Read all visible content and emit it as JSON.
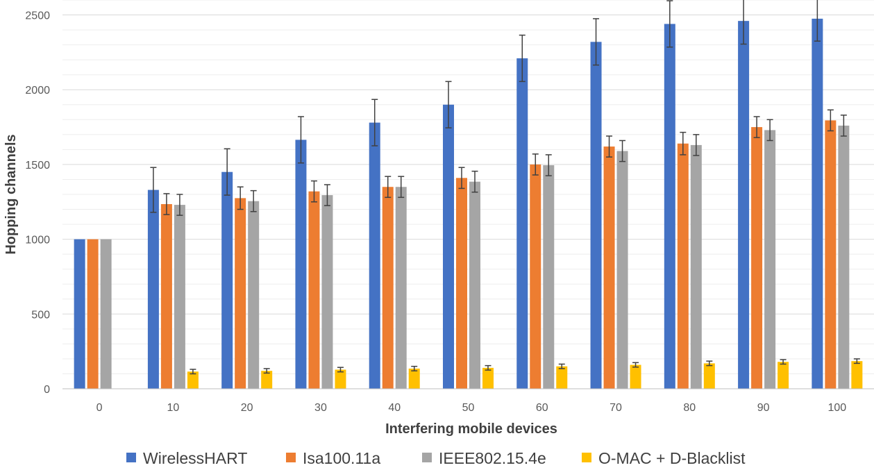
{
  "chart_data": {
    "type": "bar",
    "xlabel": "Interfering mobile devices",
    "ylabel": "Hopping channels",
    "ylim": [
      0,
      2600
    ],
    "yticks": [
      0,
      500,
      1000,
      1500,
      2000,
      2500
    ],
    "grid": true,
    "legend_position": "bottom",
    "categories": [
      "0",
      "10",
      "20",
      "30",
      "40",
      "50",
      "60",
      "70",
      "80",
      "90",
      "100"
    ],
    "series": [
      {
        "name": "WirelessHART",
        "color": "#4472C4",
        "values": [
          1000,
          1330,
          1450,
          1665,
          1780,
          1900,
          2210,
          2320,
          2440,
          2460,
          2475
        ],
        "error": [
          0,
          150,
          155,
          155,
          155,
          155,
          155,
          155,
          155,
          155,
          150
        ]
      },
      {
        "name": "Isa100.11a",
        "color": "#ED7D31",
        "values": [
          1000,
          1235,
          1275,
          1320,
          1350,
          1410,
          1500,
          1620,
          1640,
          1750,
          1795
        ],
        "error": [
          0,
          70,
          75,
          70,
          70,
          70,
          70,
          70,
          75,
          70,
          70
        ]
      },
      {
        "name": "IEEE802.15.4e",
        "color": "#A5A5A5",
        "values": [
          1000,
          1230,
          1255,
          1295,
          1350,
          1385,
          1495,
          1590,
          1630,
          1730,
          1760
        ],
        "error": [
          0,
          70,
          70,
          70,
          70,
          70,
          70,
          70,
          70,
          70,
          70
        ]
      },
      {
        "name": "O-MAC + D-Blacklist",
        "color": "#FFC000",
        "values": [
          0,
          115,
          120,
          128,
          135,
          140,
          150,
          160,
          170,
          180,
          185
        ],
        "error": [
          0,
          15,
          15,
          15,
          15,
          15,
          15,
          15,
          15,
          15,
          15
        ]
      }
    ]
  }
}
